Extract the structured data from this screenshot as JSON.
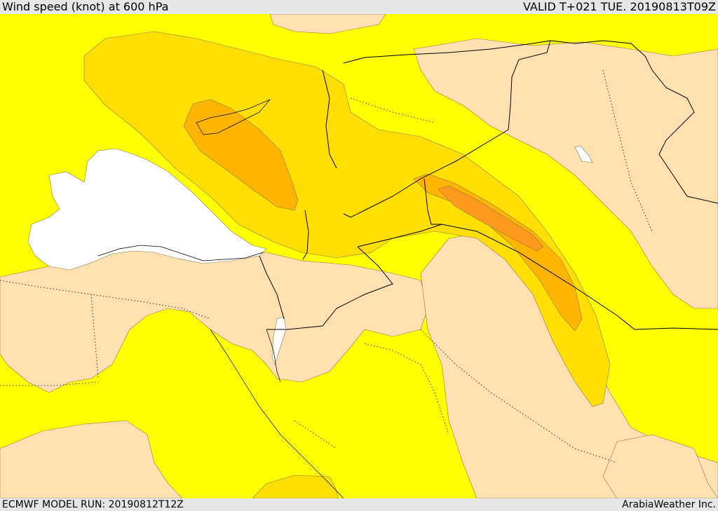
{
  "header": {
    "title": "Wind speed (knot) at 600 hPa",
    "valid_time": "VALID T+021 TUE. 20190813T09Z"
  },
  "footer": {
    "model_run": "ECMWF MODEL RUN: 20190812T12Z",
    "credit": "ArabiaWeather Inc."
  },
  "map": {
    "colors": {
      "calm": "#ffffff",
      "light": "#ffe0b0",
      "moderate": "#ffff00",
      "fresh": "#ffde00",
      "strong": "#ffb400",
      "very_strong": "#ff9a1e",
      "border": "#000000"
    }
  }
}
